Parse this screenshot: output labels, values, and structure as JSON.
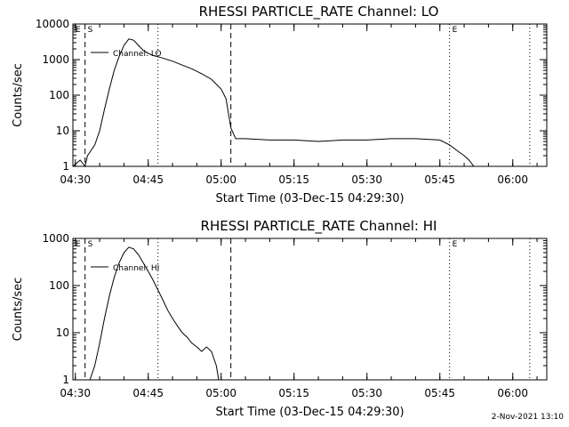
{
  "chart_data": [
    {
      "type": "line",
      "title": "RHESSI PARTICLE_RATE Channel: LO",
      "xlabel": "Start Time (03-Dec-15 04:29:30)",
      "ylabel": "Counts/sec",
      "yscale": "log",
      "ylim": [
        1,
        10000
      ],
      "xlim": [
        "04:29:30",
        "06:07:00"
      ],
      "x_ticks": [
        "04:30",
        "04:45",
        "05:00",
        "05:15",
        "05:30",
        "05:45",
        "06:00"
      ],
      "y_ticks": [
        "1",
        "10",
        "100",
        "1000",
        "10000"
      ],
      "legend": "Channel: LO",
      "legend_position": "top-left",
      "markers": [
        {
          "label": "E",
          "time": "04:29:30",
          "style": "none"
        },
        {
          "label": "S",
          "time": "04:32:00",
          "style": "dashed"
        },
        {
          "label": "",
          "time": "04:47:00",
          "style": "dotted"
        },
        {
          "label": "",
          "time": "05:02:00",
          "style": "dashed"
        },
        {
          "label": "E",
          "time": "05:47:00",
          "style": "dotted"
        },
        {
          "label": "",
          "time": "06:03:30",
          "style": "dotted"
        }
      ],
      "series": [
        {
          "name": "Channel: LO",
          "points": [
            [
              "04:29:30",
              1
            ],
            [
              "04:31:00",
              1.5
            ],
            [
              "04:32:00",
              1
            ],
            [
              "04:32:30",
              2
            ],
            [
              "04:33:00",
              2.5
            ],
            [
              "04:34:00",
              4
            ],
            [
              "04:35:00",
              10
            ],
            [
              "04:36:00",
              40
            ],
            [
              "04:37:00",
              150
            ],
            [
              "04:38:00",
              500
            ],
            [
              "04:39:00",
              1200
            ],
            [
              "04:40:00",
              2500
            ],
            [
              "04:41:00",
              3800
            ],
            [
              "04:42:00",
              3500
            ],
            [
              "04:43:00",
              2500
            ],
            [
              "04:44:00",
              1800
            ],
            [
              "04:45:00",
              1500
            ],
            [
              "04:46:00",
              1300
            ],
            [
              "04:47:00",
              1200
            ],
            [
              "04:48:00",
              1100
            ],
            [
              "04:50:00",
              900
            ],
            [
              "04:52:00",
              700
            ],
            [
              "04:54:00",
              550
            ],
            [
              "04:56:00",
              400
            ],
            [
              "04:58:00",
              280
            ],
            [
              "05:00:00",
              150
            ],
            [
              "05:01:00",
              80
            ],
            [
              "05:02:00",
              12
            ],
            [
              "05:03:00",
              6
            ],
            [
              "05:05:00",
              6
            ],
            [
              "05:10:00",
              5.5
            ],
            [
              "05:15:00",
              5.5
            ],
            [
              "05:20:00",
              5
            ],
            [
              "05:25:00",
              5.5
            ],
            [
              "05:30:00",
              5.5
            ],
            [
              "05:35:00",
              6
            ],
            [
              "05:40:00",
              6
            ],
            [
              "05:45:00",
              5.5
            ],
            [
              "05:47:00",
              4
            ],
            [
              "05:49:00",
              2.5
            ],
            [
              "05:50:00",
              2
            ],
            [
              "05:51:00",
              1.5
            ],
            [
              "05:52:00",
              1
            ],
            [
              "05:55:00",
              1
            ],
            [
              "06:00:00",
              1
            ],
            [
              "06:01:00",
              1
            ]
          ]
        }
      ]
    },
    {
      "type": "line",
      "title": "RHESSI PARTICLE_RATE Channel: HI",
      "xlabel": "Start Time (03-Dec-15 04:29:30)",
      "ylabel": "Counts/sec",
      "yscale": "log",
      "ylim": [
        1,
        1000
      ],
      "xlim": [
        "04:29:30",
        "06:07:00"
      ],
      "x_ticks": [
        "04:30",
        "04:45",
        "05:00",
        "05:15",
        "05:30",
        "05:45",
        "06:00"
      ],
      "y_ticks": [
        "1",
        "10",
        "100",
        "1000"
      ],
      "legend": "Channel: HI",
      "legend_position": "top-left",
      "markers": [
        {
          "label": "E",
          "time": "04:29:30",
          "style": "none"
        },
        {
          "label": "S",
          "time": "04:32:00",
          "style": "dashed"
        },
        {
          "label": "",
          "time": "04:47:00",
          "style": "dotted"
        },
        {
          "label": "",
          "time": "05:02:00",
          "style": "dashed"
        },
        {
          "label": "E",
          "time": "05:47:00",
          "style": "dotted"
        },
        {
          "label": "",
          "time": "06:03:30",
          "style": "dotted"
        }
      ],
      "series": [
        {
          "name": "Channel: HI",
          "points": [
            [
              "04:33:00",
              1
            ],
            [
              "04:34:00",
              2
            ],
            [
              "04:35:00",
              6
            ],
            [
              "04:36:00",
              20
            ],
            [
              "04:37:00",
              60
            ],
            [
              "04:38:00",
              150
            ],
            [
              "04:39:00",
              300
            ],
            [
              "04:40:00",
              500
            ],
            [
              "04:41:00",
              650
            ],
            [
              "04:42:00",
              600
            ],
            [
              "04:43:00",
              450
            ],
            [
              "04:44:00",
              300
            ],
            [
              "04:45:00",
              200
            ],
            [
              "04:46:00",
              130
            ],
            [
              "04:47:00",
              80
            ],
            [
              "04:48:00",
              50
            ],
            [
              "04:49:00",
              30
            ],
            [
              "04:50:00",
              20
            ],
            [
              "04:51:00",
              14
            ],
            [
              "04:52:00",
              10
            ],
            [
              "04:53:00",
              8
            ],
            [
              "04:54:00",
              6
            ],
            [
              "04:55:00",
              5
            ],
            [
              "04:56:00",
              4
            ],
            [
              "04:57:00",
              5
            ],
            [
              "04:58:00",
              4
            ],
            [
              "04:59:00",
              2
            ],
            [
              "04:59:30",
              1
            ]
          ]
        }
      ]
    }
  ],
  "footer": {
    "date": "2-Nov-2021 13:10"
  }
}
